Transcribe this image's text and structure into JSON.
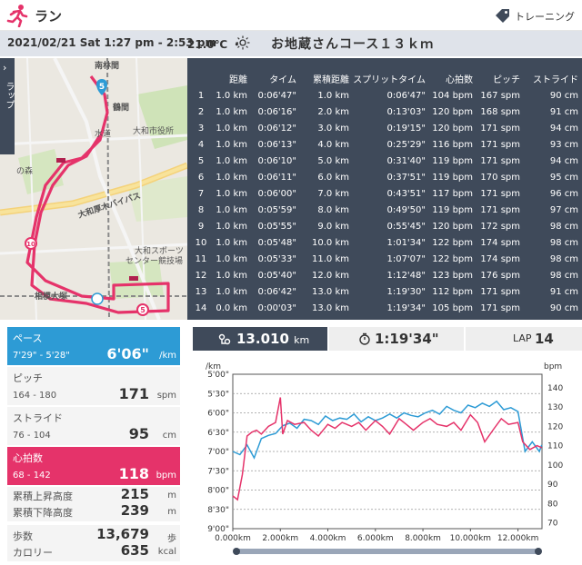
{
  "header": {
    "title": "ラン",
    "right_label": "トレーニング",
    "icons": {
      "app": "running-person-icon",
      "tag": "tag-icon"
    },
    "accent": "#e5336a"
  },
  "info": {
    "datetime": "2021/02/21 Sat 1:27 pm - 2:53 pm",
    "temperature": "21.0℃ ・",
    "weather_icon": "sun-icon",
    "course": "お地蔵さんコース１３ｋｍ"
  },
  "map": {
    "side_tab_label": "ラップ",
    "labels": {
      "minamirinkan": "南林間",
      "tsuruma": "鶴間",
      "mizuguchi": "水道",
      "yamato_city": "大和市役所",
      "mori": "の森",
      "bypass": "大和厚木バイパス",
      "route": "国道16号線",
      "yamato_sports": "大和スポーツ",
      "center": "センター競技場",
      "sagamiotsuka": "相模大塚",
      "odakyu": "小田急江ノ島線"
    },
    "markers": [
      "5",
      "10",
      "5"
    ],
    "route_color": "#e5336a"
  },
  "laps": {
    "columns": [
      "",
      "距離",
      "タイム",
      "累積距離",
      "スプリットタイム",
      "心拍数",
      "ピッチ",
      "ストライド"
    ],
    "rows": [
      [
        "1",
        "1.0 km",
        "0:06'47\"",
        "1.0 km",
        "0:06'47\"",
        "104 bpm",
        "167 spm",
        "90 cm"
      ],
      [
        "2",
        "1.0 km",
        "0:06'16\"",
        "2.0 km",
        "0:13'03\"",
        "120 bpm",
        "168 spm",
        "91 cm"
      ],
      [
        "3",
        "1.0 km",
        "0:06'12\"",
        "3.0 km",
        "0:19'15\"",
        "120 bpm",
        "171 spm",
        "94 cm"
      ],
      [
        "4",
        "1.0 km",
        "0:06'13\"",
        "4.0 km",
        "0:25'29\"",
        "116 bpm",
        "171 spm",
        "93 cm"
      ],
      [
        "5",
        "1.0 km",
        "0:06'10\"",
        "5.0 km",
        "0:31'40\"",
        "119 bpm",
        "171 spm",
        "94 cm"
      ],
      [
        "6",
        "1.0 km",
        "0:06'11\"",
        "6.0 km",
        "0:37'51\"",
        "119 bpm",
        "170 spm",
        "95 cm"
      ],
      [
        "7",
        "1.0 km",
        "0:06'00\"",
        "7.0 km",
        "0:43'51\"",
        "117 bpm",
        "171 spm",
        "96 cm"
      ],
      [
        "8",
        "1.0 km",
        "0:05'59\"",
        "8.0 km",
        "0:49'50\"",
        "119 bpm",
        "171 spm",
        "97 cm"
      ],
      [
        "9",
        "1.0 km",
        "0:05'55\"",
        "9.0 km",
        "0:55'45\"",
        "120 bpm",
        "172 spm",
        "98 cm"
      ],
      [
        "10",
        "1.0 km",
        "0:05'48\"",
        "10.0 km",
        "1:01'34\"",
        "122 bpm",
        "174 spm",
        "98 cm"
      ],
      [
        "11",
        "1.0 km",
        "0:05'33\"",
        "11.0 km",
        "1:07'07\"",
        "122 bpm",
        "174 spm",
        "98 cm"
      ],
      [
        "12",
        "1.0 km",
        "0:05'40\"",
        "12.0 km",
        "1:12'48\"",
        "123 bpm",
        "176 spm",
        "98 cm"
      ],
      [
        "13",
        "1.0 km",
        "0:06'42\"",
        "13.0 km",
        "1:19'30\"",
        "112 bpm",
        "171 spm",
        "91 cm"
      ],
      [
        "14",
        "0.0 km",
        "0:00'03\"",
        "13.0 km",
        "1:19'34\"",
        "105 bpm",
        "171 spm",
        "90 cm"
      ]
    ]
  },
  "stats": {
    "pace": {
      "label": "ペース",
      "range": "7'29\" - 5'28\"",
      "value": "6'06\"",
      "unit": "/km",
      "color": "#2d9bd5"
    },
    "pitch": {
      "label": "ピッチ",
      "range": "164 - 180",
      "value": "171",
      "unit": "spm"
    },
    "stride": {
      "label": "ストライド",
      "range": "76 - 104",
      "value": "95",
      "unit": "cm"
    },
    "heart": {
      "label": "心拍数",
      "range": "68 - 142",
      "value": "118",
      "unit": "bpm",
      "color": "#e5336a"
    },
    "ascent": {
      "label": "累積上昇高度",
      "value": "215",
      "unit": "m"
    },
    "descent": {
      "label": "累積下降高度",
      "value": "239",
      "unit": "m"
    },
    "steps": {
      "label": "歩数",
      "value": "13,679",
      "unit": "歩"
    },
    "calories": {
      "label": "カロリー",
      "value": "635",
      "unit": "kcal"
    }
  },
  "tabs": {
    "distance": {
      "icon": "distance-icon",
      "value": "13.010",
      "unit": "km"
    },
    "time": {
      "icon": "stopwatch-icon",
      "value": "1:19'34\""
    },
    "lap": {
      "label": "LAP",
      "value": "14"
    }
  },
  "chart_data": {
    "type": "line",
    "left_axis_label": "/km",
    "right_axis_label": "bpm",
    "left_ticks": [
      "5'00\"",
      "5'30\"",
      "6'00\"",
      "6'30\"",
      "7'00\"",
      "7'30\"",
      "8'00\"",
      "8'30\"",
      "9'00\""
    ],
    "left_range_sec": [
      300,
      540
    ],
    "right_ticks": [
      "140",
      "130",
      "120",
      "110",
      "100",
      "90",
      "80",
      "70"
    ],
    "right_range": [
      67,
      147
    ],
    "x_ticks": [
      "0.000km",
      "2.000km",
      "4.000km",
      "6.000km",
      "8.000km",
      "10.000km",
      "12.000km"
    ],
    "x_range": [
      0,
      13.01
    ],
    "grid": true,
    "series": [
      {
        "color": "#2d9bd5",
        "axis": "left",
        "x": [
          0.0,
          0.3,
          0.6,
          0.9,
          1.2,
          1.5,
          1.8,
          2.1,
          2.4,
          2.7,
          3.0,
          3.3,
          3.6,
          3.9,
          4.2,
          4.5,
          4.8,
          5.1,
          5.4,
          5.7,
          6.0,
          6.3,
          6.6,
          6.9,
          7.2,
          7.5,
          7.8,
          8.1,
          8.4,
          8.7,
          9.0,
          9.3,
          9.6,
          9.9,
          10.2,
          10.5,
          10.8,
          11.1,
          11.4,
          11.7,
          12.0,
          12.3,
          12.6,
          12.9,
          13.0
        ],
        "y": [
          420,
          425,
          410,
          430,
          400,
          395,
          392,
          380,
          376,
          384,
          370,
          372,
          378,
          365,
          372,
          368,
          370,
          362,
          374,
          366,
          372,
          368,
          362,
          368,
          360,
          364,
          366,
          360,
          356,
          362,
          350,
          356,
          360,
          348,
          352,
          345,
          350,
          342,
          355,
          352,
          358,
          420,
          405,
          420,
          410
        ]
      },
      {
        "color": "#e5336a",
        "axis": "right",
        "x": [
          0.0,
          0.2,
          0.4,
          0.6,
          0.8,
          1.0,
          1.2,
          1.5,
          1.8,
          2.0,
          2.1,
          2.3,
          2.6,
          3.0,
          3.3,
          3.6,
          4.0,
          4.3,
          4.6,
          5.0,
          5.3,
          5.6,
          6.0,
          6.3,
          6.6,
          7.0,
          7.3,
          7.6,
          8.0,
          8.3,
          8.6,
          9.0,
          9.3,
          9.6,
          10.0,
          10.3,
          10.6,
          11.0,
          11.3,
          11.6,
          12.0,
          12.2,
          12.5,
          12.8,
          13.0
        ],
        "y": [
          84,
          82,
          95,
          115,
          117,
          118,
          116,
          120,
          122,
          135,
          116,
          123,
          121,
          122,
          118,
          115,
          121,
          119,
          122,
          120,
          122,
          118,
          123,
          120,
          116,
          124,
          121,
          118,
          122,
          124,
          121,
          120,
          122,
          118,
          126,
          122,
          112,
          119,
          124,
          121,
          122,
          112,
          108,
          110,
          109
        ]
      }
    ]
  },
  "slider": {
    "value": "0-13.010km"
  }
}
